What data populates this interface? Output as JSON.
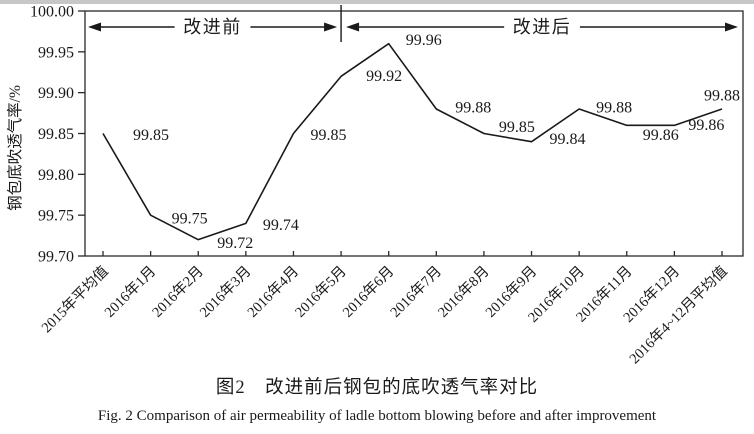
{
  "chart_data": {
    "type": "line",
    "title": "",
    "xlabel": "",
    "ylabel": "钢包底吹透气率/%",
    "ylim": [
      99.7,
      100.0
    ],
    "ytick_step": 0.05,
    "yticks": [
      "100.00",
      "99.95",
      "99.90",
      "99.85",
      "99.80",
      "99.75",
      "99.70"
    ],
    "categories": [
      "2015年平均值",
      "2016年1月",
      "2016年2月",
      "2016年3月",
      "2016年4月",
      "2016年5月",
      "2016年6月",
      "2016年7月",
      "2016年8月",
      "2016年9月",
      "2016年10月",
      "2016年11月",
      "2016年12月",
      "2016年4~12月平均值"
    ],
    "values": [
      99.85,
      99.75,
      99.72,
      99.74,
      99.85,
      99.92,
      99.96,
      99.88,
      99.85,
      99.84,
      99.88,
      99.86,
      99.86,
      99.88
    ],
    "point_labels": [
      "99.85",
      "99.75",
      "99.72",
      "99.74",
      "99.85",
      "99.92",
      "99.96",
      "99.88",
      "99.85",
      "99.84",
      "99.88",
      "99.86",
      "99.86",
      "99.88"
    ],
    "annotations": [
      {
        "label": "改进前",
        "from_index": 0,
        "to_index": 5
      },
      {
        "label": "改进后",
        "from_index": 5,
        "to_index": 13
      }
    ],
    "grid": false,
    "legend": "none",
    "line_color": "#1a1a1a",
    "frame_color": "#2a2a2a",
    "background_color": "#ffffff"
  },
  "caption": {
    "zh": "图2　改进前后钢包的底吹透气率对比",
    "en": "Fig. 2   Comparison of air permeability of ladle bottom blowing before and after improvement"
  }
}
